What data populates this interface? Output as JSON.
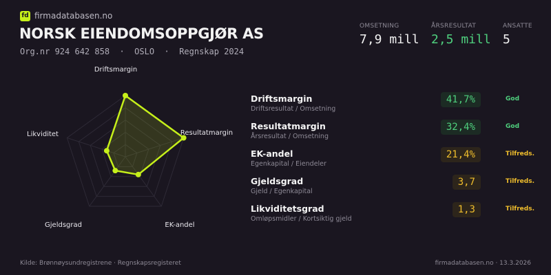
{
  "header": {
    "logo_text": "fd",
    "site": "firmadatabasen.no",
    "company": "NORSK EIENDOMSOPPGJØR AS",
    "subtitle": "Org.nr 924 642 858  ·  OSLO  ·  Regnskap 2024"
  },
  "kpis": [
    {
      "label": "OMSETNING",
      "value": "7,9 mill",
      "color": "#f2f2f2"
    },
    {
      "label": "ÅRSRESULTAT",
      "value": "2,5 mill",
      "color": "#4fd07e"
    },
    {
      "label": "ANSATTE",
      "value": "5",
      "color": "#f2f2f2"
    }
  ],
  "chart_data": {
    "type": "radar",
    "axes": [
      "Driftsmargin",
      "Resultatmargin",
      "EK-andel",
      "Gjeldsgrad",
      "Likviditet"
    ],
    "values": [
      100,
      100,
      36,
      28,
      32
    ],
    "range": [
      0,
      100
    ],
    "rings": 5,
    "color": "#c6f01a"
  },
  "metrics": [
    {
      "name": "Driftsmargin",
      "desc": "Driftsresultat / Omsetning",
      "value": "41,7%",
      "status": "God",
      "level": "good"
    },
    {
      "name": "Resultatmargin",
      "desc": "Årsresultat / Omsetning",
      "value": "32,4%",
      "status": "God",
      "level": "good"
    },
    {
      "name": "EK-andel",
      "desc": "Egenkapital / Eiendeler",
      "value": "21,4%",
      "status": "Tilfreds.",
      "level": "ok"
    },
    {
      "name": "Gjeldsgrad",
      "desc": "Gjeld / Egenkapital",
      "value": "3,7",
      "status": "Tilfreds.",
      "level": "ok"
    },
    {
      "name": "Likviditetsgrad",
      "desc": "Omløpsmidler / Kortsiktig gjeld",
      "value": "1,3",
      "status": "Tilfreds.",
      "level": "ok"
    }
  ],
  "footer": {
    "source": "Kilde: Brønnøysundregistrene · Regnskapsregisteret",
    "right": "firmadatabasen.no · 13.3.2026"
  }
}
